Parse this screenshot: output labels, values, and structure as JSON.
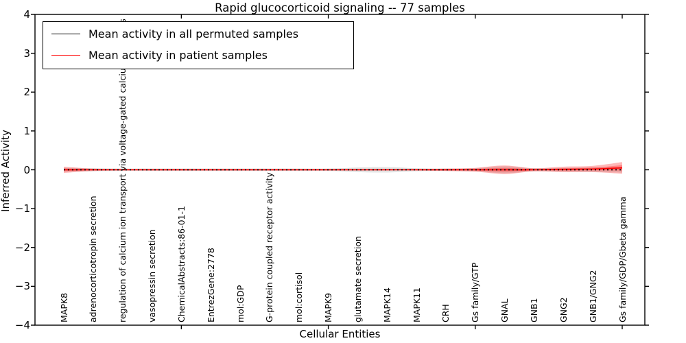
{
  "title": "Rapid glucocorticoid signaling -- 77 samples",
  "axes": {
    "ylabel": "Inferred Activity",
    "xlabel": "Cellular Entities",
    "ytick_labels": [
      "4",
      "3",
      "2",
      "1",
      "0",
      "−1",
      "−2",
      "−3",
      "−4"
    ],
    "ytick_values": [
      4,
      3,
      2,
      1,
      0,
      -1,
      -2,
      -3,
      -4
    ]
  },
  "legend": {
    "items": [
      {
        "label": "Mean activity in all permuted samples",
        "color": "#000000"
      },
      {
        "label": "Mean activity in patient samples",
        "color": "#ff0000"
      }
    ]
  },
  "colors": {
    "patient_line": "#ff0000",
    "permuted_line": "#000000",
    "patient_band": "rgba(255,0,0,0.28)",
    "permuted_band": "#e4e4e4",
    "spine": "#000000"
  },
  "chart_data": {
    "type": "line",
    "title": "Rapid glucocorticoid signaling -- 77 samples",
    "xlabel": "Cellular Entities",
    "ylabel": "Inferred Activity",
    "ylim": [
      -4,
      4
    ],
    "grid": false,
    "legend_position": "upper left",
    "categories": [
      "MAPK8",
      "adrenocorticotropin secretion",
      "regulation of calcium ion transport via voltage-gated calcium channels",
      "vasopressin secretion",
      "ChemicalAbstracts:86-01-1",
      "EntrezGene:2778",
      "mol:GDP",
      "G-protein coupled receptor activity",
      "mol:cortisol",
      "MAPK9",
      "glutamate secretion",
      "MAPK14",
      "MAPK11",
      "CRH",
      "Gs family/GTP",
      "GNAL",
      "GNB1",
      "GNG2",
      "GNB1/GNG2",
      "Gs family/GDP/Gbeta gamma"
    ],
    "series": [
      {
        "name": "Mean activity in all permuted samples",
        "style": "dashed",
        "color": "#000000",
        "mean": [
          0,
          0,
          0,
          0,
          0,
          0,
          0,
          0,
          0,
          0,
          0,
          0,
          0,
          0,
          0,
          0,
          0,
          0,
          0,
          0
        ],
        "std": [
          0.05,
          0.04,
          0.03,
          0.03,
          0.03,
          0.03,
          0.03,
          0.03,
          0.03,
          0.03,
          0.06,
          0.07,
          0.04,
          0.03,
          0.04,
          0.09,
          0.04,
          0.05,
          0.06,
          0.07
        ]
      },
      {
        "name": "Mean activity in patient samples",
        "style": "solid",
        "color": "#ff0000",
        "mean": [
          0,
          0,
          0,
          0,
          0,
          0,
          0,
          0,
          0,
          0,
          0,
          0,
          0,
          0,
          0,
          0,
          0,
          0.01,
          0.02,
          0.05
        ],
        "std": [
          0.08,
          0.03,
          0.02,
          0.02,
          0.02,
          0.02,
          0.02,
          0.02,
          0.02,
          0.02,
          0.02,
          0.02,
          0.02,
          0.03,
          0.05,
          0.11,
          0.04,
          0.07,
          0.08,
          0.15
        ]
      }
    ]
  }
}
